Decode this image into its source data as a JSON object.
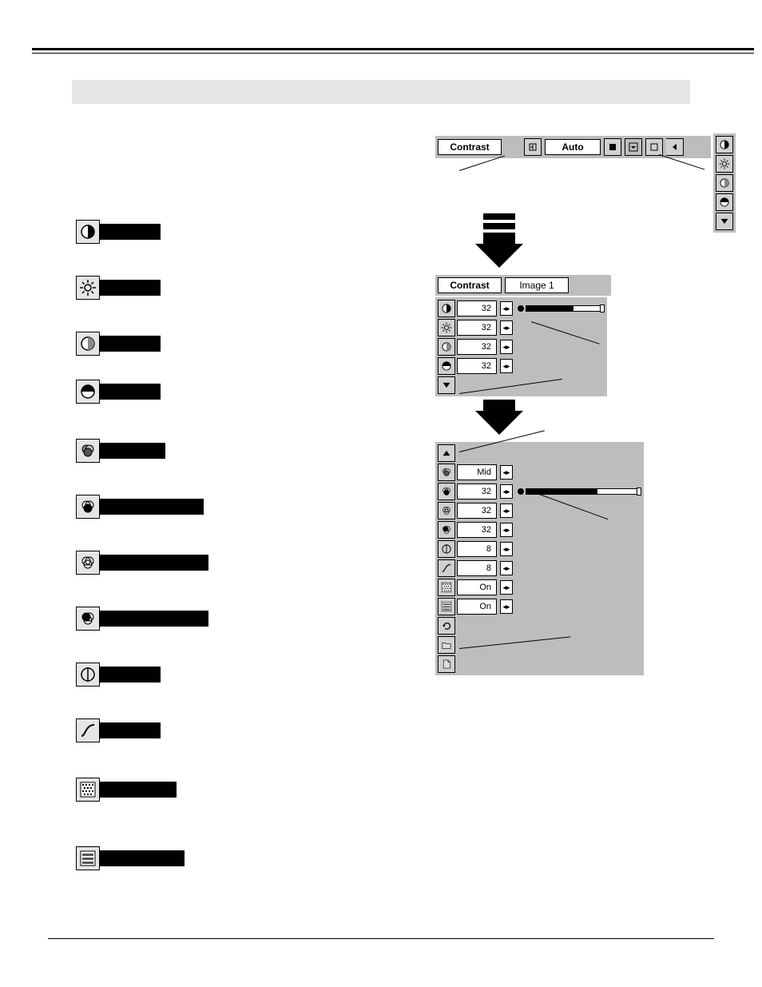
{
  "colors": {
    "page_bg": "#ffffff",
    "panel_bg": "#bdbdbd",
    "btn_bg": "#d0d0d0",
    "icon_bg": "#e5e5e5",
    "rule": "#000000",
    "black_strip": "#000000",
    "grey_band": "#e5e5e5"
  },
  "left_items": [
    {
      "icon": "contrast-icon",
      "strip_w": 76
    },
    {
      "icon": "brightness-icon",
      "strip_w": 76
    },
    {
      "icon": "half-shade-icon",
      "strip_w": 76
    },
    {
      "icon": "half-solid-icon",
      "strip_w": 76
    },
    {
      "icon": "rgb-overlap-icon",
      "strip_w": 82
    },
    {
      "icon": "rgb-outline-icon",
      "strip_w": 130
    },
    {
      "icon": "rgb-triple-icon",
      "strip_w": 136
    },
    {
      "icon": "rgb-filled-icon",
      "strip_w": 136
    },
    {
      "icon": "phi-circle-icon",
      "strip_w": 76
    },
    {
      "icon": "s-curve-icon",
      "strip_w": 76
    },
    {
      "icon": "dither-icon",
      "strip_w": 96
    },
    {
      "icon": "bars-square-icon",
      "strip_w": 106
    }
  ],
  "left_row_gaps": [
    40,
    40,
    30,
    44,
    40,
    40,
    40,
    40,
    40,
    44,
    56,
    0
  ],
  "panel1": {
    "title": "Contrast",
    "auto": "Auto",
    "side_icons": [
      "contrast-icon",
      "brightness-icon",
      "half-shade-icon",
      "half-solid-icon",
      "triangle-down-icon"
    ]
  },
  "panel2": {
    "title": "Contrast",
    "image": "Image 1",
    "rows": [
      {
        "icon": "contrast-icon",
        "value": "32",
        "slider_fill": 60,
        "slider_track": 34
      },
      {
        "icon": "brightness-icon",
        "value": "32"
      },
      {
        "icon": "half-shade-icon",
        "value": "32"
      },
      {
        "icon": "half-solid-icon",
        "value": "32"
      }
    ],
    "tail_icon": "triangle-down-icon"
  },
  "panel3": {
    "head_icon": "triangle-up-icon",
    "rows": [
      {
        "icon": "rgb-overlap-icon",
        "value": "Mid"
      },
      {
        "icon": "rgb-outline-icon",
        "value": "32",
        "slider_fill": 90,
        "slider_track": 50
      },
      {
        "icon": "rgb-triple-icon",
        "value": "32"
      },
      {
        "icon": "rgb-filled-icon",
        "value": "32"
      },
      {
        "icon": "phi-circle-icon",
        "value": "8"
      },
      {
        "icon": "s-curve-icon",
        "value": "8"
      },
      {
        "icon": "dither-icon",
        "value": "On"
      },
      {
        "icon": "bars-square-icon",
        "value": "On"
      }
    ],
    "tail_icons": [
      "undo-icon",
      "folder-icon",
      "page-icon"
    ]
  }
}
